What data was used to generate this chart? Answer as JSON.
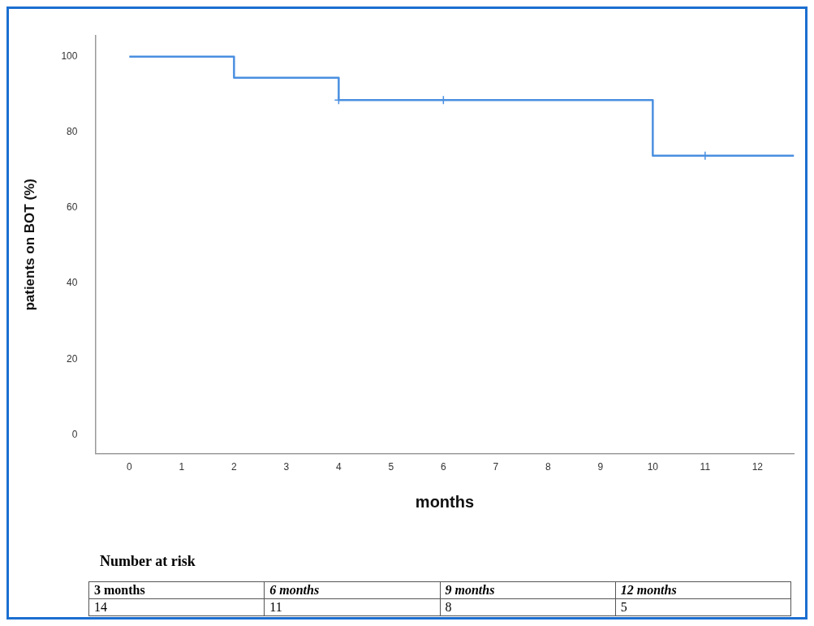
{
  "chart_data": {
    "type": "step",
    "xlabel": "months",
    "ylabel": "patients on BOT (%)",
    "xlim": [
      -0.65,
      12.7
    ],
    "ylim": [
      -5,
      105.5
    ],
    "xticks": [
      0,
      1,
      2,
      3,
      4,
      5,
      6,
      7,
      8,
      9,
      10,
      11,
      12
    ],
    "yticks": [
      0,
      20,
      40,
      60,
      80,
      100
    ],
    "series": [
      {
        "type": "step",
        "color": "#4a8fe0",
        "x": [
          0,
          2,
          4,
          10,
          12.7
        ],
        "values": [
          100,
          94.4,
          88.5,
          73.8,
          73.8
        ],
        "marker": "none"
      },
      {
        "type": "scatter",
        "color": "#4a8fe0",
        "x": [
          4,
          6,
          11
        ],
        "values": [
          88.5,
          88.5,
          73.8
        ],
        "marker": "cross"
      }
    ],
    "grid": false,
    "legend": false,
    "annotations": [
      "Number at risk",
      "3 months",
      "6 months",
      "9 months",
      "12 months",
      "14",
      "11",
      "8",
      "5"
    ]
  }
}
